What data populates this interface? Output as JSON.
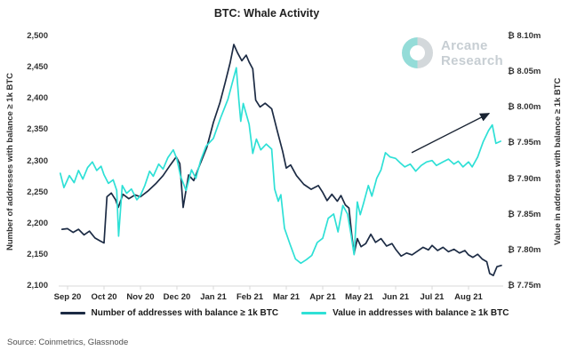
{
  "title": "BTC: Whale Activity",
  "watermark": {
    "line1": "Arcane",
    "line2": "Research"
  },
  "source": "Source: Coinmetrics, Glassnode",
  "legend": [
    {
      "label": "Number of addresses with balance ≥ 1k BTC",
      "color": "#1c2b44"
    },
    {
      "label": "Value in addresses with balance ≥ 1k BTC",
      "color": "#2ee0d6"
    }
  ],
  "colors": {
    "navy_series": "#1c2b44",
    "cyan_series": "#2ee0d6",
    "axis_line": "#d8d8d8",
    "tick_text": "#333333",
    "title_text": "#1f1f1f",
    "watermark_gray": "#c7ced3",
    "watermark_teal": "#94dcd8",
    "arrow": "#1a2433"
  },
  "chart_data": {
    "type": "line",
    "title": "BTC: Whale Activity",
    "x_axis": {
      "tick_labels": [
        "Sep 20",
        "Oct 20",
        "Nov 20",
        "Dec 20",
        "Jan 21",
        "Feb 21",
        "Mar 21",
        "Apr 21",
        "May 21",
        "Jun 21",
        "Jul 21",
        "Aug 21"
      ],
      "range_note": "monthly ticks, data spans Sep 2020 to early Sep 2021",
      "grid": false
    },
    "left_axis": {
      "label": "Number of addresses with balance ≥ 1k BTC",
      "ticks": [
        2100,
        2150,
        2200,
        2250,
        2300,
        2350,
        2400,
        2450,
        2500
      ],
      "tick_labels": [
        "2,100",
        "2,150",
        "2,200",
        "2,250",
        "2,300",
        "2,350",
        "2,400",
        "2,450",
        "2,500"
      ],
      "ylim": [
        2100,
        2500
      ]
    },
    "right_axis": {
      "label": "Value in addresses with balance ≥ 1k BTC",
      "ticks": [
        7.75,
        7.8,
        7.85,
        7.9,
        7.95,
        8.0,
        8.05,
        8.1
      ],
      "tick_labels": [
        "₿ 7.75m",
        "₿ 7.80m",
        "₿ 7.85m",
        "₿ 7.90m",
        "₿ 7.95m",
        "₿ 8.00m",
        "₿ 8.05m",
        "₿ 8.10m"
      ],
      "ylim": [
        7.75,
        8.1
      ]
    },
    "series": [
      {
        "name": "Number of addresses with balance ≥ 1k BTC",
        "axis": "left",
        "color": "#1c2b44",
        "points": [
          [
            -0.15,
            2191
          ],
          [
            0,
            2192
          ],
          [
            0.15,
            2186
          ],
          [
            0.3,
            2191
          ],
          [
            0.45,
            2182
          ],
          [
            0.6,
            2188
          ],
          [
            0.75,
            2177
          ],
          [
            0.9,
            2172
          ],
          [
            1.0,
            2169
          ],
          [
            1.08,
            2243
          ],
          [
            1.2,
            2249
          ],
          [
            1.32,
            2238
          ],
          [
            1.39,
            2226
          ],
          [
            1.52,
            2247
          ],
          [
            1.68,
            2240
          ],
          [
            1.85,
            2246
          ],
          [
            2.0,
            2243
          ],
          [
            2.2,
            2252
          ],
          [
            2.42,
            2264
          ],
          [
            2.62,
            2277
          ],
          [
            2.82,
            2294
          ],
          [
            2.98,
            2307
          ],
          [
            3.08,
            2296
          ],
          [
            3.17,
            2226
          ],
          [
            3.32,
            2278
          ],
          [
            3.46,
            2269
          ],
          [
            3.62,
            2293
          ],
          [
            3.82,
            2322
          ],
          [
            4.0,
            2362
          ],
          [
            4.18,
            2394
          ],
          [
            4.32,
            2425
          ],
          [
            4.46,
            2458
          ],
          [
            4.56,
            2487
          ],
          [
            4.66,
            2474
          ],
          [
            4.78,
            2461
          ],
          [
            4.9,
            2470
          ],
          [
            4.98,
            2459
          ],
          [
            5.08,
            2448
          ],
          [
            5.16,
            2398
          ],
          [
            5.28,
            2387
          ],
          [
            5.42,
            2393
          ],
          [
            5.6,
            2384
          ],
          [
            5.75,
            2349
          ],
          [
            5.9,
            2316
          ],
          [
            6.0,
            2289
          ],
          [
            6.12,
            2294
          ],
          [
            6.28,
            2277
          ],
          [
            6.48,
            2263
          ],
          [
            6.68,
            2255
          ],
          [
            6.88,
            2261
          ],
          [
            7.0,
            2250
          ],
          [
            7.12,
            2237
          ],
          [
            7.25,
            2247
          ],
          [
            7.4,
            2236
          ],
          [
            7.5,
            2245
          ],
          [
            7.62,
            2230
          ],
          [
            7.72,
            2225
          ],
          [
            7.8,
            2180
          ],
          [
            7.86,
            2152
          ],
          [
            7.95,
            2176
          ],
          [
            8.05,
            2163
          ],
          [
            8.18,
            2168
          ],
          [
            8.32,
            2183
          ],
          [
            8.45,
            2170
          ],
          [
            8.6,
            2176
          ],
          [
            8.75,
            2164
          ],
          [
            8.9,
            2168
          ],
          [
            9.0,
            2159
          ],
          [
            9.15,
            2148
          ],
          [
            9.3,
            2153
          ],
          [
            9.45,
            2150
          ],
          [
            9.6,
            2156
          ],
          [
            9.75,
            2162
          ],
          [
            9.9,
            2158
          ],
          [
            10.0,
            2165
          ],
          [
            10.15,
            2157
          ],
          [
            10.3,
            2162
          ],
          [
            10.45,
            2155
          ],
          [
            10.6,
            2159
          ],
          [
            10.75,
            2153
          ],
          [
            10.9,
            2157
          ],
          [
            11.0,
            2150
          ],
          [
            11.12,
            2146
          ],
          [
            11.25,
            2151
          ],
          [
            11.38,
            2143
          ],
          [
            11.5,
            2139
          ],
          [
            11.58,
            2120
          ],
          [
            11.68,
            2117
          ],
          [
            11.78,
            2131
          ],
          [
            11.9,
            2133
          ]
        ]
      },
      {
        "name": "Value in addresses with balance ≥ 1k BTC",
        "axis": "right",
        "color": "#2ee0d6",
        "points": [
          [
            -0.2,
            7.908
          ],
          [
            -0.1,
            7.888
          ],
          [
            0.05,
            7.905
          ],
          [
            0.18,
            7.895
          ],
          [
            0.3,
            7.912
          ],
          [
            0.42,
            7.9
          ],
          [
            0.55,
            7.916
          ],
          [
            0.68,
            7.924
          ],
          [
            0.8,
            7.912
          ],
          [
            0.92,
            7.918
          ],
          [
            1.0,
            7.906
          ],
          [
            1.12,
            7.894
          ],
          [
            1.25,
            7.899
          ],
          [
            1.35,
            7.884
          ],
          [
            1.4,
            7.82
          ],
          [
            1.5,
            7.891
          ],
          [
            1.62,
            7.88
          ],
          [
            1.75,
            7.886
          ],
          [
            1.9,
            7.871
          ],
          [
            2.0,
            7.877
          ],
          [
            2.12,
            7.891
          ],
          [
            2.25,
            7.911
          ],
          [
            2.35,
            7.904
          ],
          [
            2.5,
            7.921
          ],
          [
            2.62,
            7.914
          ],
          [
            2.75,
            7.93
          ],
          [
            2.9,
            7.941
          ],
          [
            3.0,
            7.928
          ],
          [
            3.1,
            7.904
          ],
          [
            3.25,
            7.884
          ],
          [
            3.4,
            7.913
          ],
          [
            3.52,
            7.901
          ],
          [
            3.65,
            7.926
          ],
          [
            3.8,
            7.946
          ],
          [
            4.0,
            7.957
          ],
          [
            4.2,
            7.986
          ],
          [
            4.4,
            8.012
          ],
          [
            4.52,
            8.035
          ],
          [
            4.63,
            8.056
          ],
          [
            4.7,
            8.01
          ],
          [
            4.75,
            7.981
          ],
          [
            4.82,
            8.006
          ],
          [
            4.98,
            7.977
          ],
          [
            5.08,
            7.936
          ],
          [
            5.18,
            7.956
          ],
          [
            5.3,
            7.941
          ],
          [
            5.45,
            7.949
          ],
          [
            5.6,
            7.942
          ],
          [
            5.68,
            7.886
          ],
          [
            5.78,
            7.869
          ],
          [
            5.85,
            7.878
          ],
          [
            5.95,
            7.831
          ],
          [
            6.1,
            7.809
          ],
          [
            6.25,
            7.788
          ],
          [
            6.4,
            7.782
          ],
          [
            6.55,
            7.787
          ],
          [
            6.7,
            7.793
          ],
          [
            6.85,
            7.811
          ],
          [
            7.0,
            7.817
          ],
          [
            7.15,
            7.845
          ],
          [
            7.3,
            7.851
          ],
          [
            7.42,
            7.826
          ],
          [
            7.55,
            7.863
          ],
          [
            7.68,
            7.851
          ],
          [
            7.78,
            7.821
          ],
          [
            7.86,
            7.794
          ],
          [
            7.95,
            7.868
          ],
          [
            8.03,
            7.85
          ],
          [
            8.12,
            7.866
          ],
          [
            8.25,
            7.891
          ],
          [
            8.35,
            7.876
          ],
          [
            8.48,
            7.901
          ],
          [
            8.6,
            7.913
          ],
          [
            8.72,
            7.937
          ],
          [
            8.85,
            7.931
          ],
          [
            9.0,
            7.929
          ],
          [
            9.12,
            7.923
          ],
          [
            9.25,
            7.917
          ],
          [
            9.4,
            7.921
          ],
          [
            9.55,
            7.911
          ],
          [
            9.7,
            7.919
          ],
          [
            9.85,
            7.924
          ],
          [
            10.0,
            7.926
          ],
          [
            10.12,
            7.919
          ],
          [
            10.3,
            7.924
          ],
          [
            10.45,
            7.928
          ],
          [
            10.6,
            7.921
          ],
          [
            10.72,
            7.925
          ],
          [
            10.85,
            7.917
          ],
          [
            11.0,
            7.924
          ],
          [
            11.1,
            7.917
          ],
          [
            11.25,
            7.931
          ],
          [
            11.4,
            7.952
          ],
          [
            11.55,
            7.968
          ],
          [
            11.65,
            7.976
          ],
          [
            11.75,
            7.95
          ],
          [
            11.88,
            7.953
          ]
        ]
      }
    ],
    "annotation_arrow": {
      "axis": "right",
      "from": [
        9.44,
        7.937
      ],
      "to": [
        11.56,
        7.992
      ]
    },
    "legend_position": "bottom-center"
  }
}
